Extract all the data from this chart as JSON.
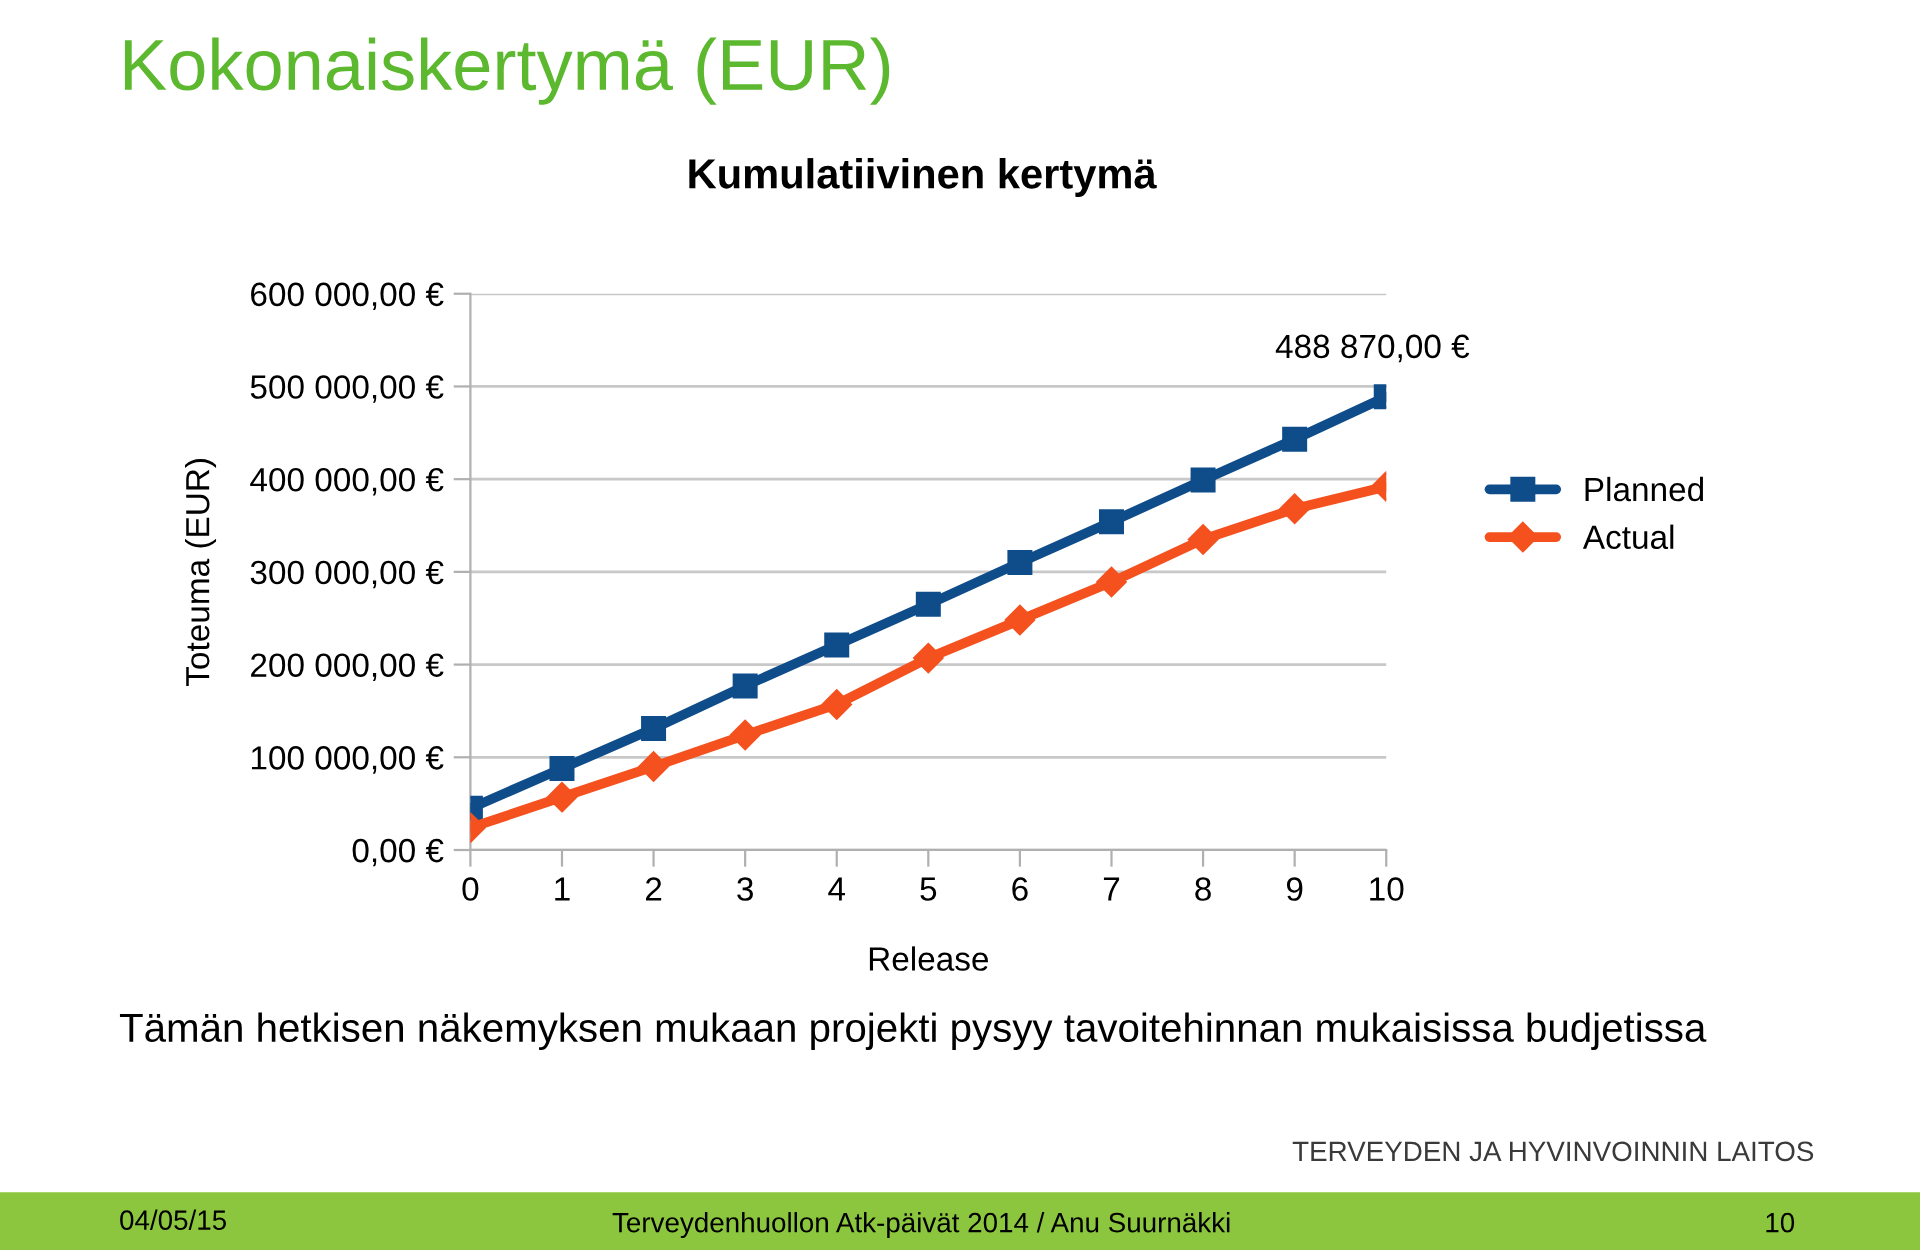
{
  "chart_data": {
    "type": "line",
    "title": "Kokonaiskertymä (EUR)",
    "subtitle": "Kumulatiivinen kertymä",
    "xlabel": "Release",
    "ylabel": "Toteuma (EUR)",
    "x": [
      0,
      1,
      2,
      3,
      4,
      5,
      6,
      7,
      8,
      9,
      10
    ],
    "series": [
      {
        "name": "Planned",
        "color": "#0f4c8a",
        "marker": "square",
        "values": [
          45000,
          88000,
          131000,
          177000,
          221000,
          265000,
          310000,
          354000,
          399000,
          443000,
          488870
        ]
      },
      {
        "name": "Actual",
        "color": "#f4511e",
        "marker": "diamond",
        "values": [
          24000,
          57000,
          90000,
          124000,
          157000,
          207000,
          248000,
          289000,
          335000,
          368000,
          392000
        ]
      }
    ],
    "xlim": [
      0,
      10
    ],
    "xticks": [
      0,
      1,
      2,
      3,
      4,
      5,
      6,
      7,
      8,
      9,
      10
    ],
    "ylim": [
      0,
      600000
    ],
    "yticks": [
      {
        "value": 0,
        "label": "0,00 €"
      },
      {
        "value": 100000,
        "label": "100 000,00 €"
      },
      {
        "value": 200000,
        "label": "200 000,00 €"
      },
      {
        "value": 300000,
        "label": "300 000,00 €"
      },
      {
        "value": 400000,
        "label": "400 000,00 €"
      },
      {
        "value": 500000,
        "label": "500 000,00 €"
      },
      {
        "value": 600000,
        "label": "600 000,00 €"
      }
    ],
    "grid": "y",
    "legend": "right",
    "line_style": "solid",
    "annotations": [
      {
        "text": "488 870,00 €",
        "x": 10,
        "y": 488870
      },
      "Tämän hetkisen näkemyksen mukaan projekti pysyy tavoitehinnan mukaisissa budjetissa",
      "TERVEYDEN JA HYVINVOINNIN LAITOS",
      "04/05/15",
      "Terveydenhuollon Atk-päivät 2014 / Anu Suurnäkki",
      "10"
    ]
  }
}
